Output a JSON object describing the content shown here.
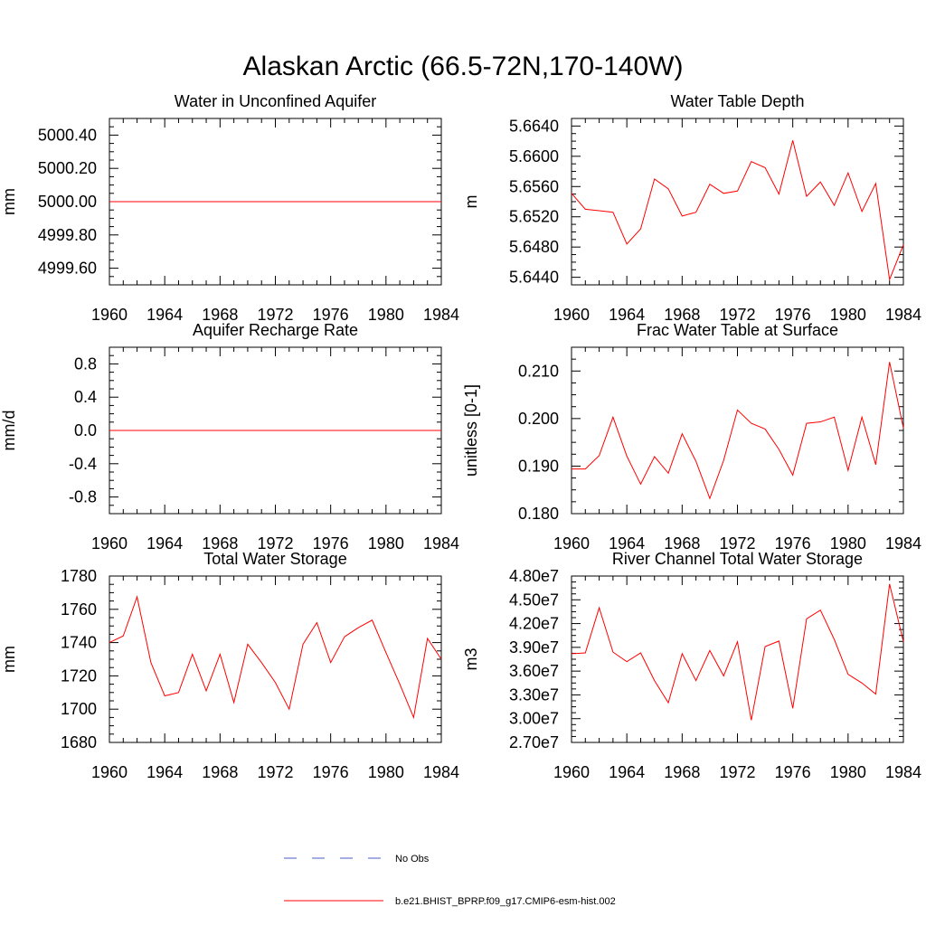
{
  "figure": {
    "title": "Alaskan Arctic (66.5-72N,170-140W)"
  },
  "colors": {
    "model": "#ff0000",
    "obs": "#4a5ec8"
  },
  "legend": {
    "entries": [
      {
        "label": "No Obs",
        "style": "dashed",
        "color": "#4a5ec8"
      },
      {
        "label": "b.e21.BHIST_BPRP.f09_g17.CMIP6-esm-hist.002",
        "style": "solid",
        "color": "#ff0000"
      }
    ]
  },
  "chart_data": [
    {
      "type": "line",
      "title": "Water in Unconfined Aquifer",
      "xlabel": "",
      "ylabel": "mm",
      "xlim": [
        1960,
        1984
      ],
      "ylim": [
        4999.5,
        5000.5
      ],
      "xticks": [
        1960,
        1964,
        1968,
        1972,
        1976,
        1980,
        1984
      ],
      "yticks": [
        4999.6,
        4999.8,
        5000.0,
        5000.2,
        5000.4
      ],
      "ytick_labels": [
        "4999.60",
        "4999.80",
        "5000.00",
        "5000.20",
        "5000.40"
      ],
      "grid": false,
      "series": [
        {
          "x": [
            1960,
            1961,
            1962,
            1963,
            1964,
            1965,
            1966,
            1967,
            1968,
            1969,
            1970,
            1971,
            1972,
            1973,
            1974,
            1975,
            1976,
            1977,
            1978,
            1979,
            1980,
            1981,
            1982,
            1983,
            1984
          ],
          "values": [
            5000,
            5000,
            5000,
            5000,
            5000,
            5000,
            5000,
            5000,
            5000,
            5000,
            5000,
            5000,
            5000,
            5000,
            5000,
            5000,
            5000,
            5000,
            5000,
            5000,
            5000,
            5000,
            5000,
            5000,
            5000
          ]
        }
      ]
    },
    {
      "type": "line",
      "title": "Water Table Depth",
      "xlabel": "",
      "ylabel": "m",
      "xlim": [
        1960,
        1984
      ],
      "ylim": [
        5.643,
        5.665
      ],
      "xticks": [
        1960,
        1964,
        1968,
        1972,
        1976,
        1980,
        1984
      ],
      "yticks": [
        5.644,
        5.648,
        5.652,
        5.656,
        5.66,
        5.664
      ],
      "ytick_labels": [
        "5.6440",
        "5.6480",
        "5.6520",
        "5.6560",
        "5.6600",
        "5.6640"
      ],
      "grid": false,
      "series": [
        {
          "x": [
            1960,
            1961,
            1962,
            1963,
            1964,
            1965,
            1966,
            1967,
            1968,
            1969,
            1970,
            1971,
            1972,
            1973,
            1974,
            1975,
            1976,
            1977,
            1978,
            1979,
            1980,
            1981,
            1982,
            1983,
            1984
          ],
          "values": [
            5.6551,
            5.653,
            5.6528,
            5.6526,
            5.6484,
            5.6504,
            5.657,
            5.6557,
            5.6521,
            5.6526,
            5.6563,
            5.6551,
            5.6554,
            5.6593,
            5.6585,
            5.655,
            5.6621,
            5.6547,
            5.6566,
            5.6535,
            5.6578,
            5.6527,
            5.6564,
            5.6437,
            5.6483
          ]
        }
      ]
    },
    {
      "type": "line",
      "title": "Aquifer Recharge Rate",
      "xlabel": "",
      "ylabel": "mm/d",
      "xlim": [
        1960,
        1984
      ],
      "ylim": [
        -1.0,
        1.0
      ],
      "xticks": [
        1960,
        1964,
        1968,
        1972,
        1976,
        1980,
        1984
      ],
      "yticks": [
        -0.8,
        -0.4,
        0.0,
        0.4,
        0.8
      ],
      "ytick_labels": [
        "-0.8",
        "-0.4",
        "0.0",
        "0.4",
        "0.8"
      ],
      "grid": false,
      "series": [
        {
          "x": [
            1960,
            1961,
            1962,
            1963,
            1964,
            1965,
            1966,
            1967,
            1968,
            1969,
            1970,
            1971,
            1972,
            1973,
            1974,
            1975,
            1976,
            1977,
            1978,
            1979,
            1980,
            1981,
            1982,
            1983,
            1984
          ],
          "values": [
            0,
            0,
            0,
            0,
            0,
            0,
            0,
            0,
            0,
            0,
            0,
            0,
            0,
            0,
            0,
            0,
            0,
            0,
            0,
            0,
            0,
            0,
            0,
            0,
            0
          ]
        }
      ]
    },
    {
      "type": "line",
      "title": "Frac Water Table at Surface",
      "xlabel": "",
      "ylabel": "unitless [0-1]",
      "xlim": [
        1960,
        1984
      ],
      "ylim": [
        0.18,
        0.215
      ],
      "xticks": [
        1960,
        1964,
        1968,
        1972,
        1976,
        1980,
        1984
      ],
      "yticks": [
        0.18,
        0.19,
        0.2,
        0.21
      ],
      "ytick_labels": [
        "0.180",
        "0.190",
        "0.200",
        "0.210"
      ],
      "grid": false,
      "series": [
        {
          "x": [
            1960,
            1961,
            1962,
            1963,
            1964,
            1965,
            1966,
            1967,
            1968,
            1969,
            1970,
            1971,
            1972,
            1973,
            1974,
            1975,
            1976,
            1977,
            1978,
            1979,
            1980,
            1981,
            1982,
            1983,
            1984
          ],
          "values": [
            0.1894,
            0.1894,
            0.1922,
            0.2003,
            0.1921,
            0.1862,
            0.192,
            0.1885,
            0.1968,
            0.191,
            0.1832,
            0.1912,
            0.2018,
            0.199,
            0.1978,
            0.1935,
            0.1881,
            0.199,
            0.1993,
            0.2003,
            0.1891,
            0.2003,
            0.1903,
            0.2119,
            0.198
          ]
        }
      ]
    },
    {
      "type": "line",
      "title": "Total Water Storage",
      "xlabel": "",
      "ylabel": "mm",
      "xlim": [
        1960,
        1984
      ],
      "ylim": [
        1680,
        1780
      ],
      "xticks": [
        1960,
        1964,
        1968,
        1972,
        1976,
        1980,
        1984
      ],
      "yticks": [
        1680,
        1700,
        1720,
        1740,
        1760,
        1780
      ],
      "ytick_labels": [
        "1680",
        "1700",
        "1720",
        "1740",
        "1760",
        "1780"
      ],
      "grid": false,
      "series": [
        {
          "x": [
            1960,
            1961,
            1962,
            1963,
            1964,
            1965,
            1966,
            1967,
            1968,
            1969,
            1970,
            1971,
            1972,
            1973,
            1974,
            1975,
            1976,
            1977,
            1978,
            1979,
            1980,
            1981,
            1982,
            1983,
            1984
          ],
          "values": [
            1740,
            1744,
            1767.5,
            1728,
            1708,
            1710,
            1733,
            1711,
            1733,
            1704,
            1739,
            1728,
            1716,
            1700,
            1739,
            1752,
            1728,
            1743.5,
            1749,
            1753.5,
            1734,
            1715,
            1695,
            1742.5,
            1730
          ]
        }
      ]
    },
    {
      "type": "line",
      "title": "River Channel Total Water Storage",
      "xlabel": "",
      "ylabel": "m3",
      "xlim": [
        1960,
        1984
      ],
      "ylim": [
        27000000,
        48000000
      ],
      "xticks": [
        1960,
        1964,
        1968,
        1972,
        1976,
        1980,
        1984
      ],
      "yticks": [
        27000000,
        30000000,
        33000000,
        36000000,
        39000000,
        42000000,
        45000000,
        48000000
      ],
      "ytick_labels": [
        "2.70e7",
        "3.00e7",
        "3.30e7",
        "3.60e7",
        "3.90e7",
        "4.20e7",
        "4.50e7",
        "4.80e7"
      ],
      "grid": false,
      "series": [
        {
          "x": [
            1960,
            1961,
            1962,
            1963,
            1964,
            1965,
            1966,
            1967,
            1968,
            1969,
            1970,
            1971,
            1972,
            1973,
            1974,
            1975,
            1976,
            1977,
            1978,
            1979,
            1980,
            1981,
            1982,
            1983,
            1984
          ],
          "values": [
            38200000,
            38300000,
            44000000,
            38400000,
            37200000,
            38300000,
            34800000,
            32000000,
            38200000,
            34800000,
            38600000,
            35400000,
            39700000,
            29800000,
            39100000,
            39800000,
            31300000,
            42600000,
            43700000,
            40000000,
            35600000,
            34500000,
            33100000,
            47000000,
            39700000
          ]
        }
      ]
    }
  ]
}
